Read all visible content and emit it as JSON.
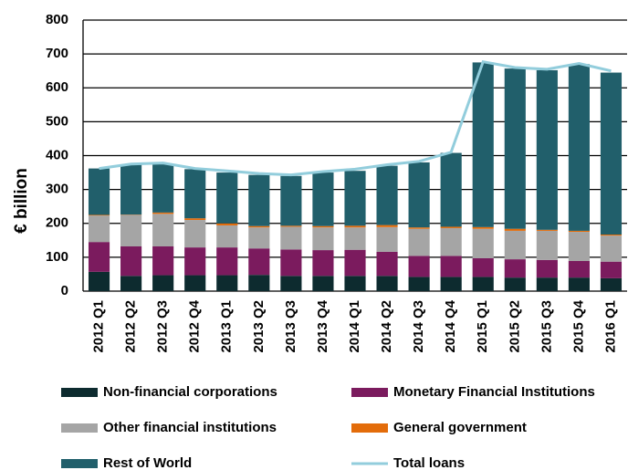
{
  "chart_data": {
    "type": "bar",
    "stacked": true,
    "y_label": "€ billion",
    "categories": [
      "2012 Q1",
      "2012 Q2",
      "2012 Q3",
      "2012 Q4",
      "2013 Q1",
      "2013 Q2",
      "2013 Q3",
      "2013 Q4",
      "2014 Q1",
      "2014 Q2",
      "2014 Q3",
      "2014 Q4",
      "2015 Q1",
      "2015 Q2",
      "2015 Q3",
      "2015 Q4",
      "2016 Q1"
    ],
    "series": [
      {
        "name": "Non-financial corporations",
        "color": "#0d2b2f",
        "values": [
          57,
          45,
          47,
          47,
          47,
          48,
          45,
          45,
          45,
          45,
          42,
          42,
          42,
          40,
          40,
          40,
          38
        ]
      },
      {
        "name": "Monetary Financial Institutions",
        "color": "#7b1b5e",
        "values": [
          88,
          87,
          85,
          82,
          82,
          78,
          78,
          76,
          77,
          71,
          62,
          62,
          55,
          54,
          52,
          49,
          49
        ]
      },
      {
        "name": "Other financial institutions",
        "color": "#a5a5a5",
        "values": [
          78,
          93,
          96,
          81,
          65,
          62,
          67,
          67,
          66,
          73,
          80,
          82,
          87,
          84,
          86,
          86,
          77
        ]
      },
      {
        "name": "General government",
        "color": "#e36c0a",
        "values": [
          2,
          1,
          4,
          5,
          6,
          4,
          3,
          4,
          5,
          6,
          4,
          4,
          5,
          6,
          3,
          3,
          3
        ]
      },
      {
        "name": "Rest of World",
        "color": "#215f6b",
        "values": [
          137,
          147,
          143,
          145,
          150,
          151,
          147,
          158,
          162,
          175,
          192,
          218,
          486,
          473,
          471,
          492,
          478
        ]
      },
      {
        "name": "Total loans",
        "color": "#92cddc",
        "type": "line",
        "values": [
          362,
          375,
          378,
          362,
          355,
          347,
          343,
          353,
          360,
          373,
          383,
          410,
          677,
          660,
          655,
          672,
          650
        ]
      }
    ],
    "ylim": [
      0,
      800
    ],
    "yticks": [
      0,
      100,
      200,
      300,
      400,
      500,
      600,
      700,
      800
    ],
    "grid": true
  }
}
